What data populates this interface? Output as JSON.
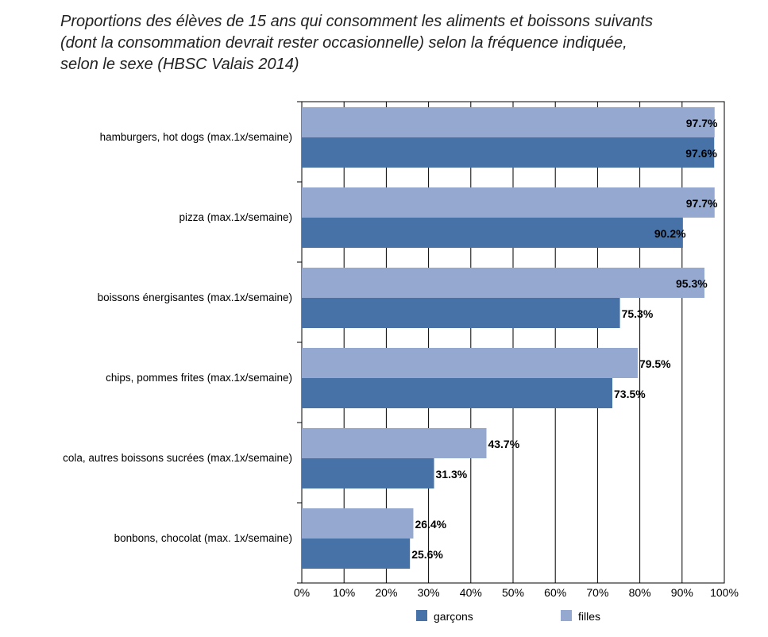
{
  "title_lines": [
    "Proportions des élèves de 15 ans qui consomment les aliments et boissons suivants",
    "(dont la consommation devrait rester occasionnelle) selon la fréquence indiquée,",
    "selon le sexe (HBSC Valais 2014)"
  ],
  "colors": {
    "garcons": "#4672a8",
    "filles": "#94a8d0",
    "grid": "#000000",
    "text": "#000000"
  },
  "chart_data": {
    "type": "bar",
    "orientation": "horizontal",
    "title": "Proportions des élèves de 15 ans qui consomment les aliments et boissons suivants (dont la consommation devrait rester occasionnelle) selon la fréquence indiquée, selon le sexe (HBSC Valais 2014)",
    "categories": [
      "hamburgers, hot dogs (max.1x/semaine)",
      "pizza (max.1x/semaine)",
      "boissons énergisantes (max.1x/semaine)",
      "chips, pommes frites (max.1x/semaine)",
      "cola, autres boissons sucrées (max.1x/semaine)",
      "bonbons, chocolat (max. 1x/semaine)"
    ],
    "series": [
      {
        "name": "garçons",
        "values": [
          97.6,
          90.2,
          75.3,
          73.5,
          31.3,
          25.6
        ],
        "labels": [
          "97.6%",
          "90.2%",
          "75.3%",
          "73.5%",
          "31.3%",
          "25.6%"
        ]
      },
      {
        "name": "filles",
        "values": [
          97.7,
          97.7,
          95.3,
          79.5,
          43.7,
          26.4
        ],
        "labels": [
          "97.7%",
          "97.7%",
          "95.3%",
          "79.5%",
          "43.7%",
          "26.4%"
        ]
      }
    ],
    "xlim": [
      0,
      100
    ],
    "xticks": [
      "0%",
      "10%",
      "20%",
      "30%",
      "40%",
      "50%",
      "60%",
      "70%",
      "80%",
      "90%",
      "100%"
    ],
    "grid": true,
    "legend": "bottom"
  }
}
